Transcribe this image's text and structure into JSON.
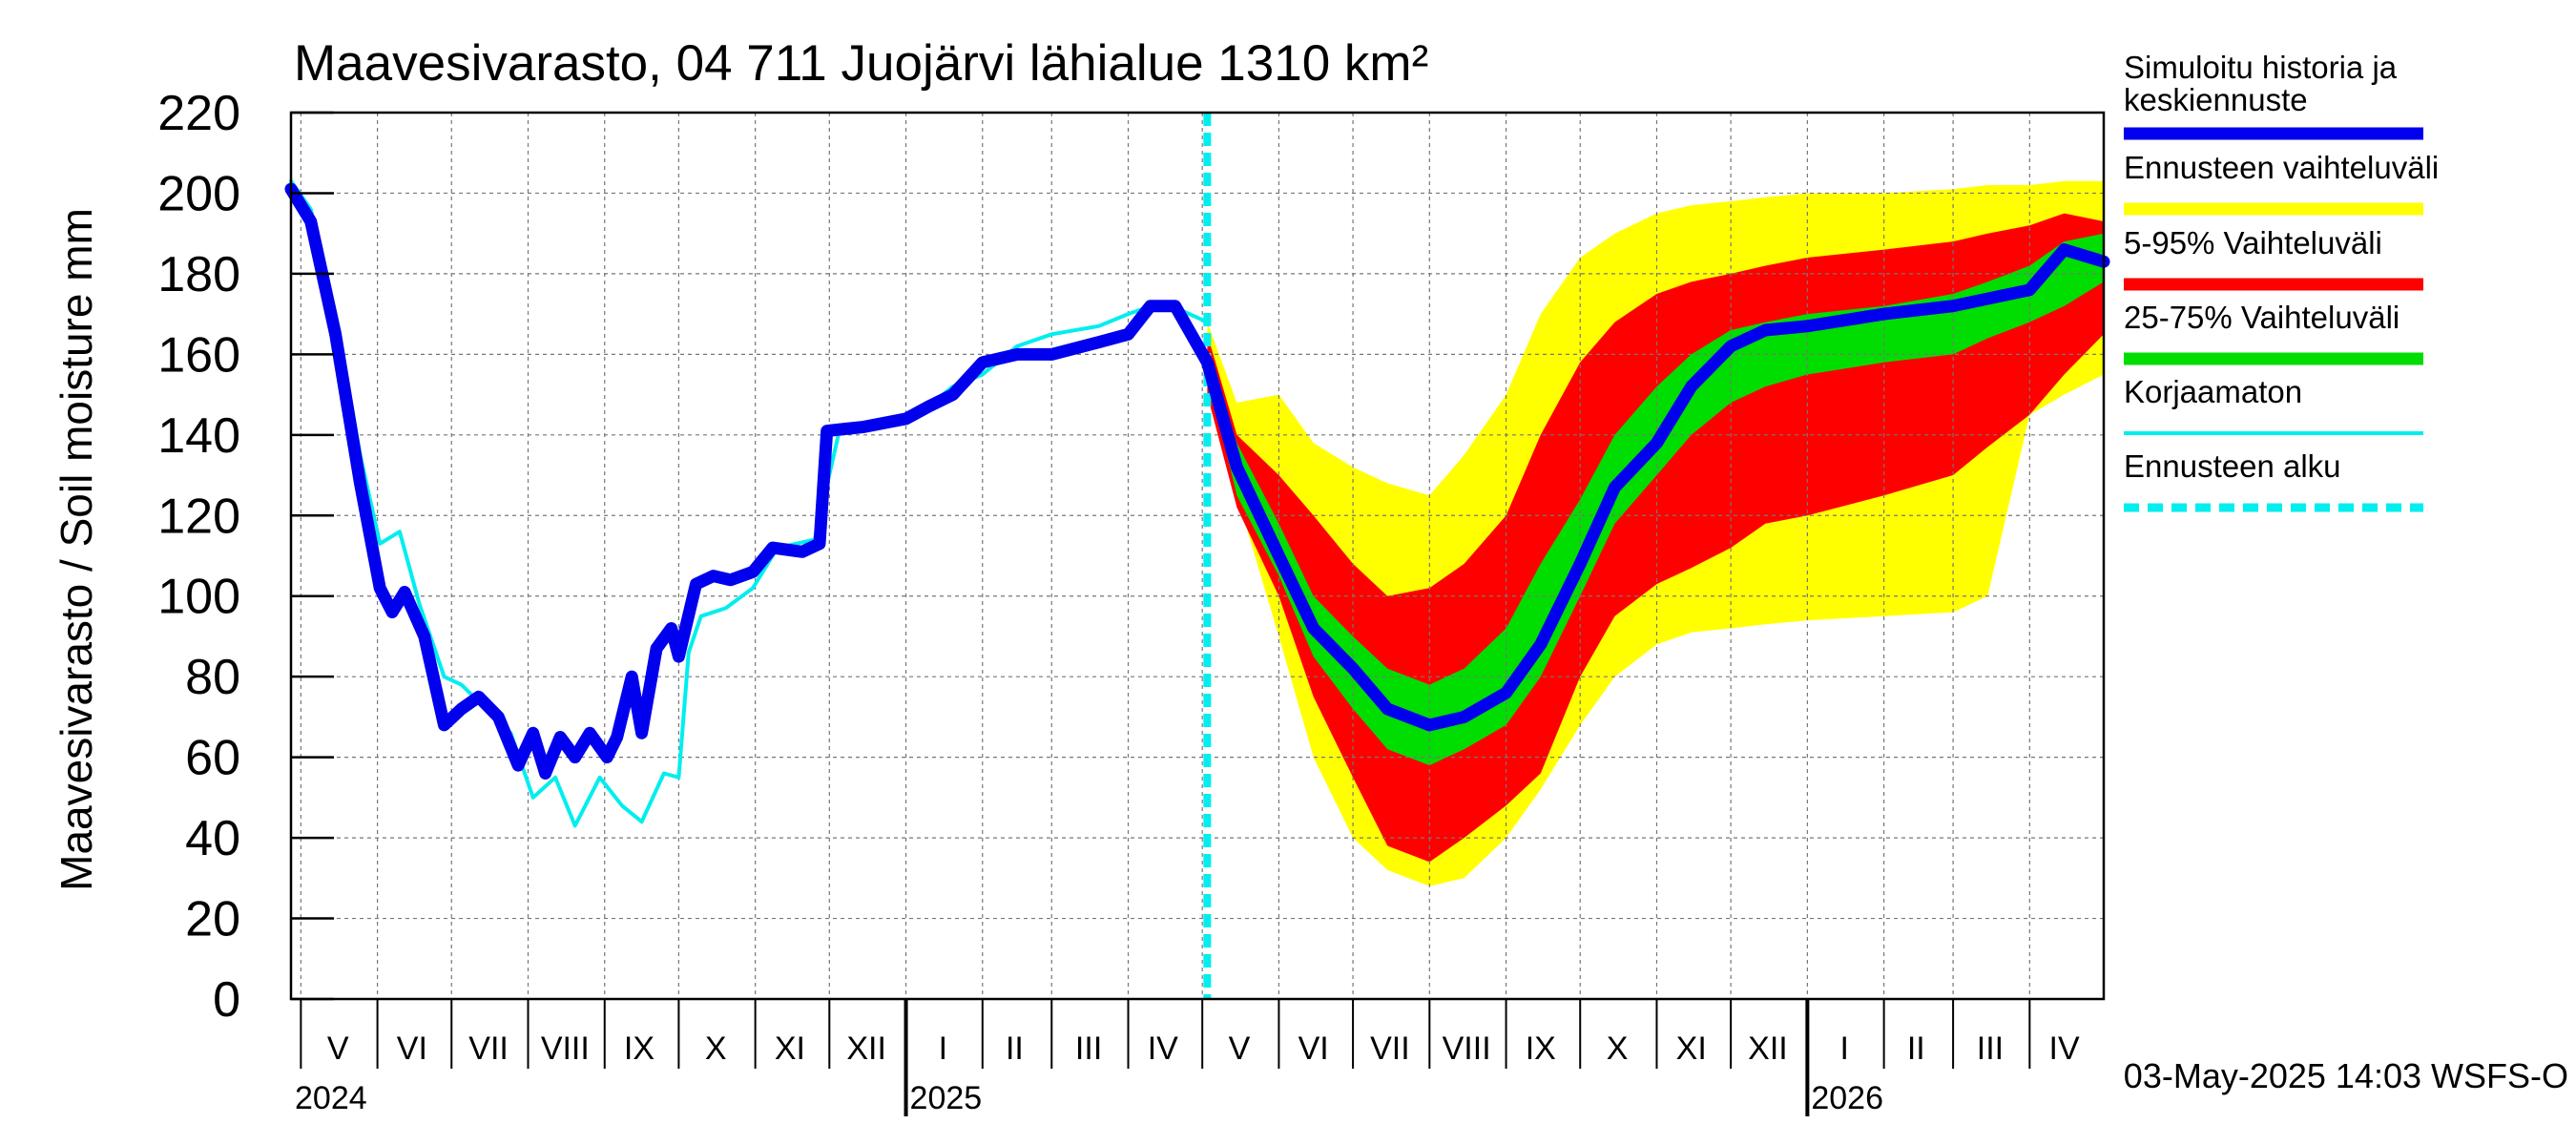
{
  "chart_data": {
    "type": "area",
    "title": "Maavesivarasto, 04 711 Juojärvi lähialue 1310 km²",
    "ylabel": "Maavesivarasto / Soil moisture   mm",
    "ylim": [
      0,
      220
    ],
    "yticks": [
      0,
      20,
      40,
      60,
      80,
      100,
      120,
      140,
      160,
      180,
      200,
      220
    ],
    "grid": true,
    "x_range": [
      "2024-04-27",
      "2026-05-01"
    ],
    "forecast_start": "2025-05-03",
    "month_labels": [
      {
        "label": "V",
        "date": "2024-05-16"
      },
      {
        "label": "VI",
        "date": "2024-06-15"
      },
      {
        "label": "VII",
        "date": "2024-07-16"
      },
      {
        "label": "VIII",
        "date": "2024-08-16"
      },
      {
        "label": "IX",
        "date": "2024-09-15"
      },
      {
        "label": "X",
        "date": "2024-10-16"
      },
      {
        "label": "XI",
        "date": "2024-11-15"
      },
      {
        "label": "XII",
        "date": "2024-12-16"
      },
      {
        "label": "I",
        "date": "2025-01-16"
      },
      {
        "label": "II",
        "date": "2025-02-14"
      },
      {
        "label": "III",
        "date": "2025-03-16"
      },
      {
        "label": "IV",
        "date": "2025-04-15"
      },
      {
        "label": "V",
        "date": "2025-05-16"
      },
      {
        "label": "VI",
        "date": "2025-06-15"
      },
      {
        "label": "VII",
        "date": "2025-07-16"
      },
      {
        "label": "VIII",
        "date": "2025-08-16"
      },
      {
        "label": "IX",
        "date": "2025-09-15"
      },
      {
        "label": "X",
        "date": "2025-10-16"
      },
      {
        "label": "XI",
        "date": "2025-11-15"
      },
      {
        "label": "XII",
        "date": "2025-12-16"
      },
      {
        "label": "I",
        "date": "2026-01-16"
      },
      {
        "label": "II",
        "date": "2026-02-14"
      },
      {
        "label": "III",
        "date": "2026-03-16"
      },
      {
        "label": "IV",
        "date": "2026-04-15"
      }
    ],
    "year_labels": [
      {
        "label": "2024",
        "date": "2024-04-27"
      },
      {
        "label": "2025",
        "date": "2025-01-01"
      },
      {
        "label": "2026",
        "date": "2026-01-01"
      }
    ],
    "legend": [
      {
        "label": "Simuloitu historia ja keskiennuste",
        "color": "#0000ee",
        "style": "thick"
      },
      {
        "label": "Ennusteen vaihteluväli",
        "color": "#ffff00",
        "style": "band"
      },
      {
        "label": "5-95% Vaihteluväli",
        "color": "#ff0000",
        "style": "band"
      },
      {
        "label": "25-75% Vaihteluväli",
        "color": "#00dd00",
        "style": "band"
      },
      {
        "label": "Korjaamaton",
        "color": "#00eeee",
        "style": "thin"
      },
      {
        "label": "Ennusteen alku",
        "color": "#00eeee",
        "style": "dashed"
      }
    ],
    "legend_placement": "right",
    "colors": {
      "simulated": "#0000ee",
      "uncorrected": "#00eeee",
      "range_full": "#ffff00",
      "range_5_95": "#ff0000",
      "range_25_75": "#00dd00",
      "forecast_start": "#00eeee"
    },
    "series": [
      {
        "name": "Simuloitu historia ja keskiennuste",
        "x": [
          "2024-04-27",
          "2024-05-05",
          "2024-05-15",
          "2024-05-25",
          "2024-06-02",
          "2024-06-07",
          "2024-06-12",
          "2024-06-20",
          "2024-06-28",
          "2024-07-05",
          "2024-07-12",
          "2024-07-20",
          "2024-07-28",
          "2024-08-03",
          "2024-08-08",
          "2024-08-14",
          "2024-08-20",
          "2024-08-26",
          "2024-09-02",
          "2024-09-06",
          "2024-09-12",
          "2024-09-16",
          "2024-09-22",
          "2024-09-28",
          "2024-10-01",
          "2024-10-08",
          "2024-10-15",
          "2024-10-22",
          "2024-10-31",
          "2024-11-08",
          "2024-11-20",
          "2024-11-27",
          "2024-11-30",
          "2024-12-15",
          "2025-01-01",
          "2025-01-10",
          "2025-01-20",
          "2025-02-01",
          "2025-02-15",
          "2025-03-01",
          "2025-03-20",
          "2025-04-01",
          "2025-04-10",
          "2025-04-20",
          "2025-05-03",
          "2025-05-15",
          "2025-06-01",
          "2025-06-15",
          "2025-07-01",
          "2025-07-15",
          "2025-08-01",
          "2025-08-15",
          "2025-09-01",
          "2025-09-15",
          "2025-10-01",
          "2025-10-15",
          "2025-11-01",
          "2025-11-15",
          "2025-12-01",
          "2025-12-15",
          "2026-01-01",
          "2026-02-01",
          "2026-03-01",
          "2026-04-01",
          "2026-04-15",
          "2026-05-01"
        ],
        "values": [
          201,
          193,
          165,
          128,
          102,
          96,
          101,
          90,
          68,
          72,
          75,
          70,
          58,
          66,
          56,
          65,
          60,
          66,
          60,
          65,
          80,
          66,
          87,
          92,
          85,
          103,
          105,
          104,
          106,
          112,
          111,
          113,
          141,
          142,
          144,
          147,
          150,
          158,
          160,
          160,
          163,
          165,
          172,
          172,
          158,
          132,
          110,
          92,
          82,
          72,
          68,
          70,
          76,
          88,
          108,
          127,
          138,
          152,
          162,
          166,
          167,
          170,
          172,
          176,
          186,
          183
        ]
      },
      {
        "name": "Korjaamaton",
        "x": [
          "2024-04-27",
          "2024-05-05",
          "2024-05-15",
          "2024-05-25",
          "2024-06-02",
          "2024-06-10",
          "2024-06-18",
          "2024-06-28",
          "2024-07-05",
          "2024-07-15",
          "2024-07-25",
          "2024-08-03",
          "2024-08-12",
          "2024-08-20",
          "2024-08-30",
          "2024-09-08",
          "2024-09-16",
          "2024-09-25",
          "2024-10-01",
          "2024-10-05",
          "2024-10-10",
          "2024-10-20",
          "2024-10-31",
          "2024-11-10",
          "2024-11-25",
          "2024-12-05",
          "2024-12-20",
          "2025-01-10",
          "2025-01-20",
          "2025-02-01",
          "2025-02-15",
          "2025-03-01",
          "2025-03-20",
          "2025-04-01",
          "2025-04-15",
          "2025-05-03"
        ],
        "values": [
          203,
          196,
          170,
          135,
          113,
          116,
          98,
          80,
          78,
          72,
          66,
          50,
          55,
          43,
          55,
          48,
          44,
          56,
          55,
          86,
          95,
          97,
          102,
          112,
          114,
          141,
          142,
          147,
          152,
          155,
          162,
          165,
          167,
          170,
          173,
          168
        ]
      }
    ],
    "ranges": [
      {
        "name": "Ennusteen vaihteluväli",
        "x": [
          "2025-05-03",
          "2025-05-15",
          "2025-06-01",
          "2025-06-15",
          "2025-07-01",
          "2025-07-15",
          "2025-08-01",
          "2025-08-15",
          "2025-09-01",
          "2025-09-15",
          "2025-10-01",
          "2025-10-15",
          "2025-11-01",
          "2025-11-15",
          "2025-12-01",
          "2025-12-15",
          "2026-01-01",
          "2026-02-01",
          "2026-03-01",
          "2026-03-15",
          "2026-04-01",
          "2026-04-15",
          "2026-05-01"
        ],
        "low": [
          165,
          125,
          90,
          60,
          40,
          32,
          28,
          30,
          40,
          52,
          68,
          80,
          88,
          91,
          92,
          93,
          94,
          95,
          96,
          100,
          145,
          150,
          155
        ],
        "high": [
          168,
          148,
          150,
          138,
          132,
          128,
          125,
          135,
          150,
          170,
          184,
          190,
          195,
          197,
          198,
          199,
          200,
          200,
          201,
          202,
          202,
          203,
          203
        ]
      },
      {
        "name": "5-95% Vaihteluväli",
        "x": [
          "2025-05-03",
          "2025-05-15",
          "2025-06-01",
          "2025-06-15",
          "2025-07-01",
          "2025-07-15",
          "2025-08-01",
          "2025-08-15",
          "2025-09-01",
          "2025-09-15",
          "2025-10-01",
          "2025-10-15",
          "2025-11-01",
          "2025-11-15",
          "2025-12-01",
          "2025-12-15",
          "2026-01-01",
          "2026-02-01",
          "2026-03-01",
          "2026-03-15",
          "2026-04-01",
          "2026-04-15",
          "2026-05-01"
        ],
        "low": [
          150,
          122,
          100,
          75,
          55,
          38,
          34,
          40,
          48,
          56,
          80,
          95,
          103,
          107,
          112,
          118,
          120,
          125,
          130,
          137,
          145,
          155,
          165
        ],
        "high": [
          165,
          140,
          130,
          120,
          108,
          100,
          102,
          108,
          120,
          140,
          158,
          168,
          175,
          178,
          180,
          182,
          184,
          186,
          188,
          190,
          192,
          195,
          193
        ]
      },
      {
        "name": "25-75% Vaihteluväli",
        "x": [
          "2025-05-03",
          "2025-05-15",
          "2025-06-01",
          "2025-06-15",
          "2025-07-01",
          "2025-07-15",
          "2025-08-01",
          "2025-08-15",
          "2025-09-01",
          "2025-09-15",
          "2025-10-01",
          "2025-10-15",
          "2025-11-01",
          "2025-11-15",
          "2025-12-01",
          "2025-12-15",
          "2026-01-01",
          "2026-02-01",
          "2026-03-01",
          "2026-03-15",
          "2026-04-01",
          "2026-04-15",
          "2026-05-01"
        ],
        "low": [
          155,
          125,
          105,
          85,
          72,
          62,
          58,
          62,
          68,
          80,
          100,
          118,
          130,
          140,
          148,
          152,
          155,
          158,
          160,
          164,
          168,
          172,
          178
        ],
        "high": [
          160,
          138,
          118,
          100,
          90,
          82,
          78,
          82,
          92,
          108,
          124,
          140,
          152,
          160,
          166,
          168,
          170,
          172,
          175,
          178,
          182,
          188,
          190
        ]
      }
    ]
  },
  "footer": {
    "timestamp": "03-May-2025 14:03 WSFS-O"
  }
}
